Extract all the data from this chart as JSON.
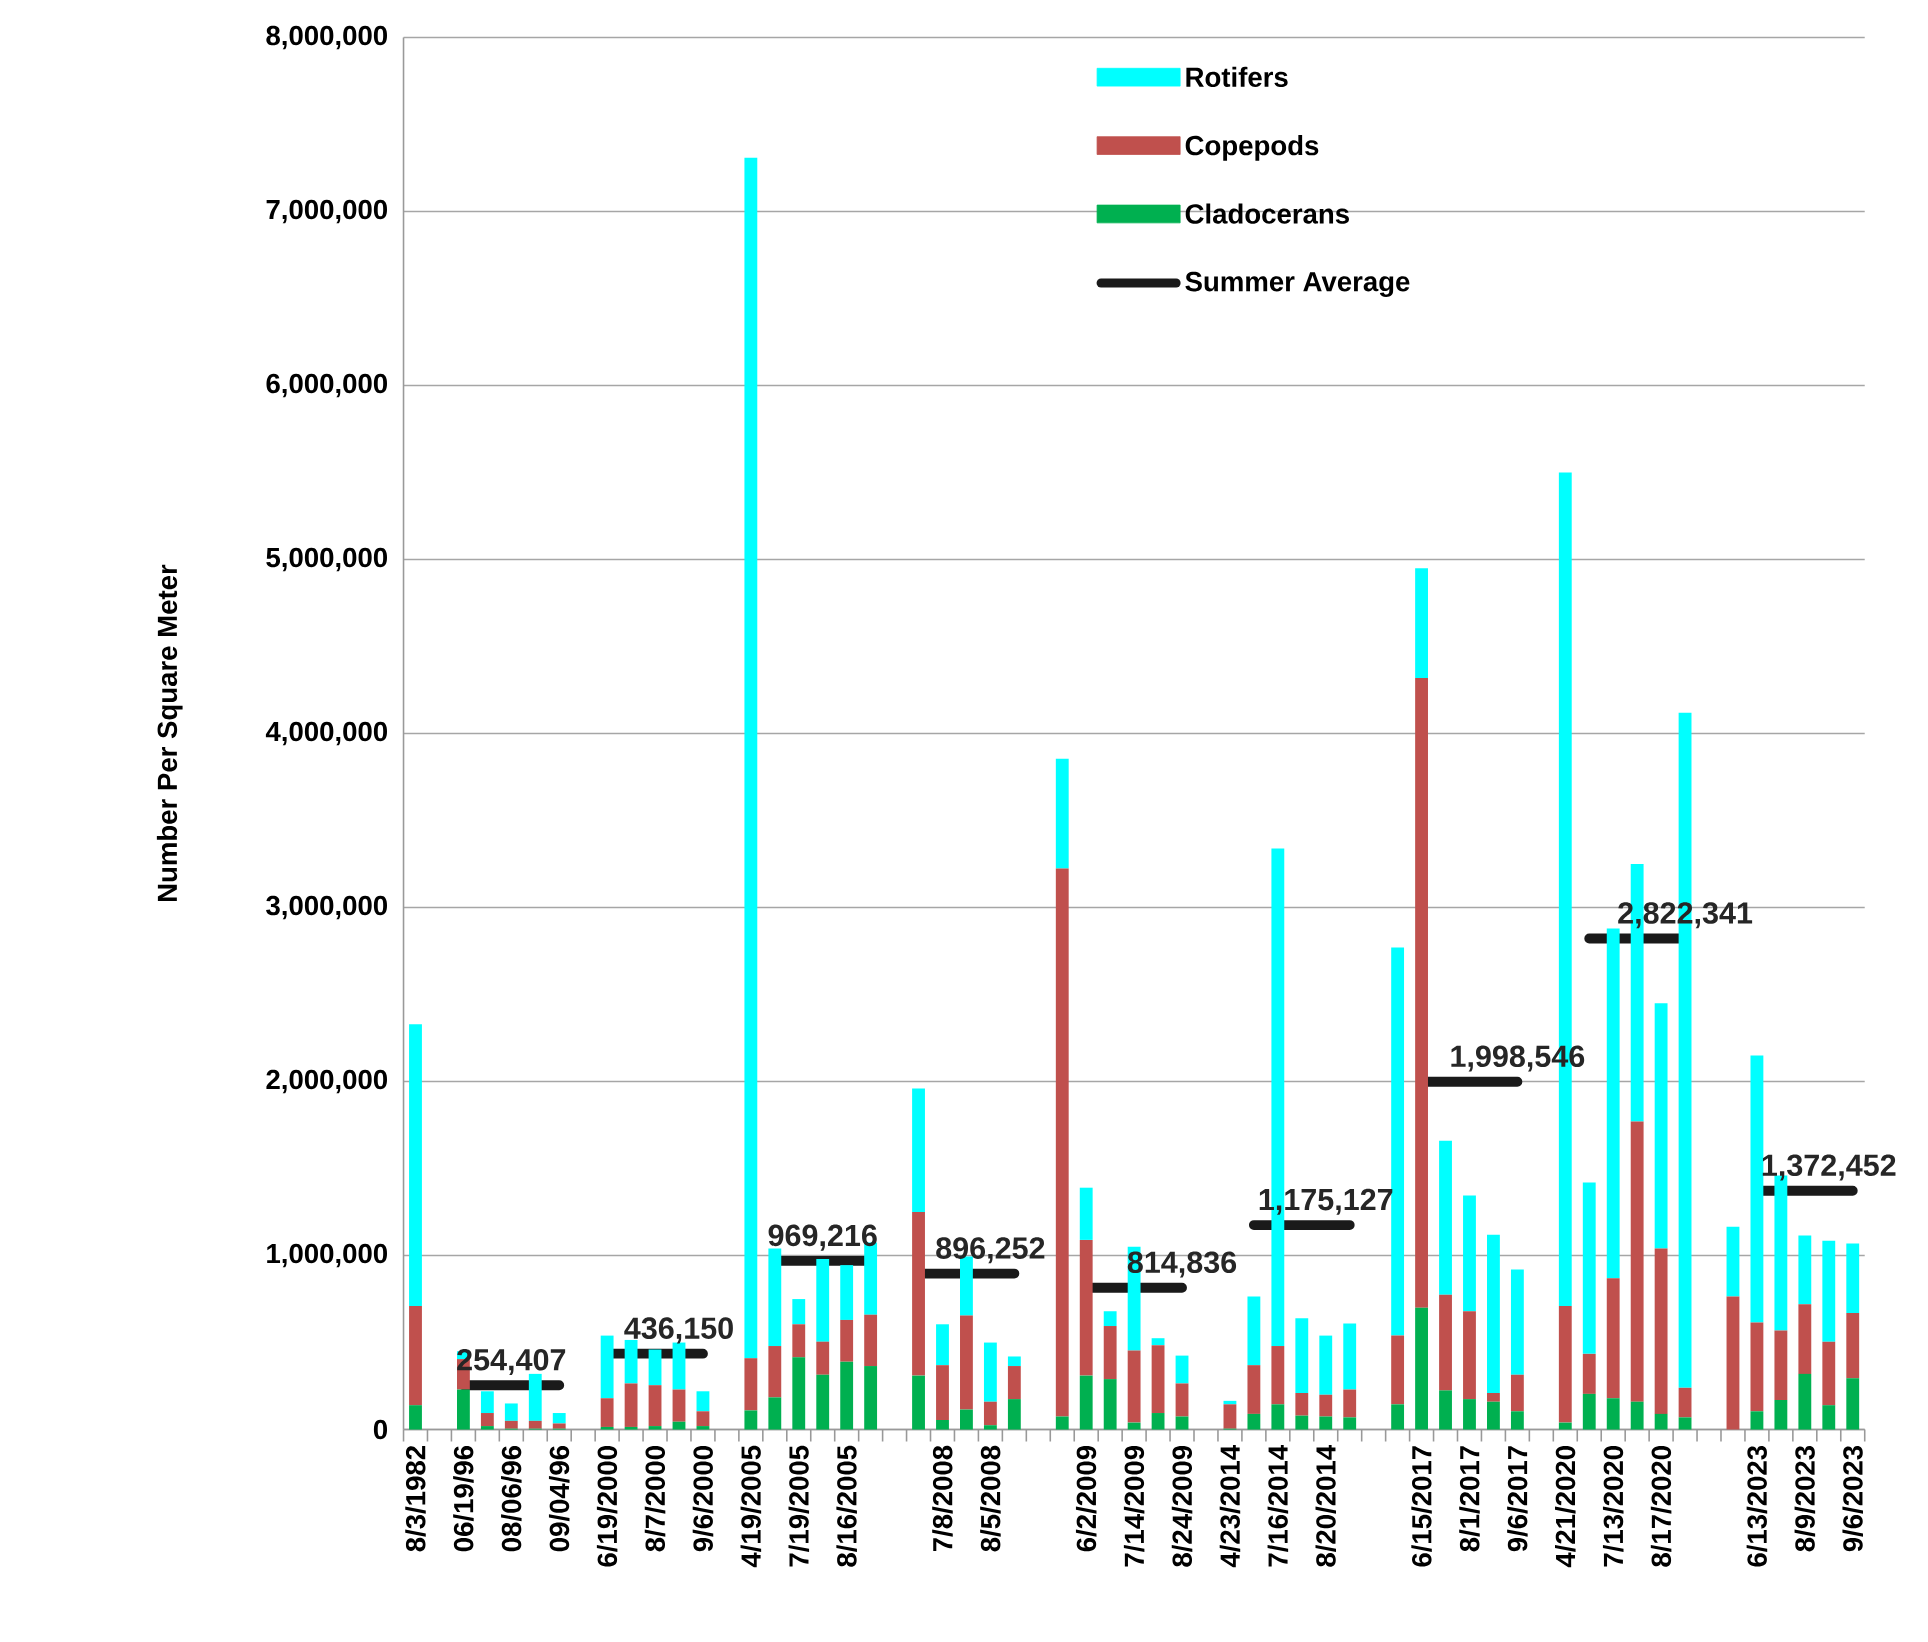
{
  "chart_data": {
    "type": "bar",
    "stacked": true,
    "ylabel": "Number Per Square Meter",
    "categories": [
      "8/3/1982",
      null,
      "06/19/96",
      null,
      "08/06/96",
      null,
      "09/04/96",
      null,
      "6/19/2000",
      null,
      "8/7/2000",
      null,
      "9/6/2000",
      null,
      "4/19/2005",
      null,
      "7/19/2005",
      null,
      "8/16/2005",
      null,
      null,
      null,
      "7/8/2008",
      null,
      "8/5/2008",
      null,
      null,
      null,
      "6/2/2009",
      null,
      "7/14/2009",
      null,
      "8/24/2009",
      null,
      "4/23/2014",
      null,
      "7/16/2014",
      null,
      "8/20/2014",
      null,
      null,
      null,
      "6/15/2017",
      null,
      "8/1/2017",
      null,
      "9/6/2017",
      null,
      "4/21/2020",
      null,
      "7/13/2020",
      null,
      "8/17/2020",
      null,
      null,
      null,
      "6/13/2023",
      null,
      "8/9/2023",
      null,
      "9/6/2023"
    ],
    "series": [
      {
        "name": "Cladocerans",
        "color": "#00b050",
        "values": [
          140000,
          null,
          230000,
          20000,
          5000,
          5000,
          5000,
          null,
          15000,
          15000,
          20000,
          45000,
          20000,
          null,
          110000,
          185000,
          415000,
          315000,
          390000,
          365000,
          null,
          310000,
          55000,
          115000,
          25000,
          175000,
          null,
          75000,
          310000,
          290000,
          40000,
          95000,
          75000,
          null,
          5000,
          90000,
          145000,
          80000,
          75000,
          70000,
          null,
          145000,
          700000,
          225000,
          175000,
          160000,
          105000,
          null,
          40000,
          205000,
          180000,
          160000,
          90000,
          70000,
          null,
          0,
          105000,
          170000,
          320000,
          140000,
          295000
        ]
      },
      {
        "name": "Copepods",
        "color": "#c0504d",
        "values": [
          570000,
          null,
          175000,
          75000,
          45000,
          45000,
          30000,
          null,
          165000,
          250000,
          235000,
          185000,
          85000,
          null,
          300000,
          295000,
          190000,
          190000,
          240000,
          295000,
          null,
          940000,
          315000,
          540000,
          135000,
          190000,
          null,
          3150000,
          780000,
          305000,
          415000,
          390000,
          190000,
          null,
          140000,
          280000,
          335000,
          130000,
          125000,
          160000,
          null,
          395000,
          3620000,
          550000,
          505000,
          50000,
          210000,
          null,
          670000,
          230000,
          690000,
          1610000,
          950000,
          170000,
          null,
          765000,
          510000,
          400000,
          400000,
          365000,
          375000
        ]
      },
      {
        "name": "Rotifers",
        "color": "#00ffff",
        "values": [
          1620000,
          null,
          45000,
          125000,
          100000,
          270000,
          60000,
          null,
          360000,
          250000,
          205000,
          270000,
          115000,
          null,
          6900000,
          560000,
          145000,
          475000,
          315000,
          415000,
          null,
          710000,
          235000,
          340000,
          340000,
          55000,
          null,
          630000,
          300000,
          85000,
          595000,
          40000,
          160000,
          null,
          20000,
          395000,
          2860000,
          430000,
          340000,
          380000,
          null,
          2230000,
          630000,
          885000,
          665000,
          910000,
          605000,
          null,
          4790000,
          985000,
          2010000,
          1480000,
          1410000,
          3880000,
          null,
          400000,
          1535000,
          890000,
          395000,
          580000,
          400000
        ]
      },
      {
        "name": "Summer Average",
        "type": "line",
        "color": "#1a1a1a",
        "values": [
          null,
          null,
          254407,
          254407,
          254407,
          254407,
          254407,
          null,
          436150,
          436150,
          436150,
          436150,
          436150,
          null,
          null,
          969216,
          969216,
          969216,
          969216,
          969216,
          null,
          896252,
          896252,
          896252,
          896252,
          896252,
          null,
          null,
          814836,
          814836,
          814836,
          814836,
          814836,
          null,
          null,
          1175127,
          1175127,
          1175127,
          1175127,
          1175127,
          null,
          null,
          1998546,
          1998546,
          1998546,
          1998546,
          1998546,
          null,
          null,
          2822341,
          2822341,
          2822341,
          2822341,
          2822341,
          null,
          null,
          1372452,
          1372452,
          1372452,
          1372452,
          1372452
        ],
        "value_labels": [
          null,
          null,
          null,
          null,
          "254,407",
          null,
          null,
          null,
          null,
          null,
          null,
          "436,150",
          null,
          null,
          null,
          null,
          null,
          "969,216",
          null,
          null,
          null,
          null,
          null,
          null,
          "896,252",
          null,
          null,
          null,
          null,
          null,
          null,
          null,
          "814,836",
          null,
          null,
          null,
          null,
          null,
          "1,175,127",
          null,
          null,
          null,
          null,
          null,
          null,
          null,
          "1,998,546",
          null,
          null,
          null,
          null,
          null,
          null,
          "2,822,341",
          null,
          null,
          null,
          null,
          null,
          "1,372,452",
          null
        ]
      }
    ],
    "ylim": [
      0,
      8000000
    ],
    "yticks": [
      0,
      {
        "value": 1000000,
        "label": "1,000,000"
      },
      {
        "value": 2000000,
        "label": "2,000,000"
      },
      {
        "value": 3000000,
        "label": "3,000,000"
      },
      {
        "value": 4000000,
        "label": "4,000,000"
      },
      {
        "value": 5000000,
        "label": "5,000,000"
      },
      {
        "value": 6000000,
        "label": "6,000,000"
      },
      {
        "value": 7000000,
        "label": "7,000,000"
      },
      {
        "value": 8000000,
        "label": "8,000,000"
      }
    ],
    "grid": "y",
    "legend": "top"
  }
}
